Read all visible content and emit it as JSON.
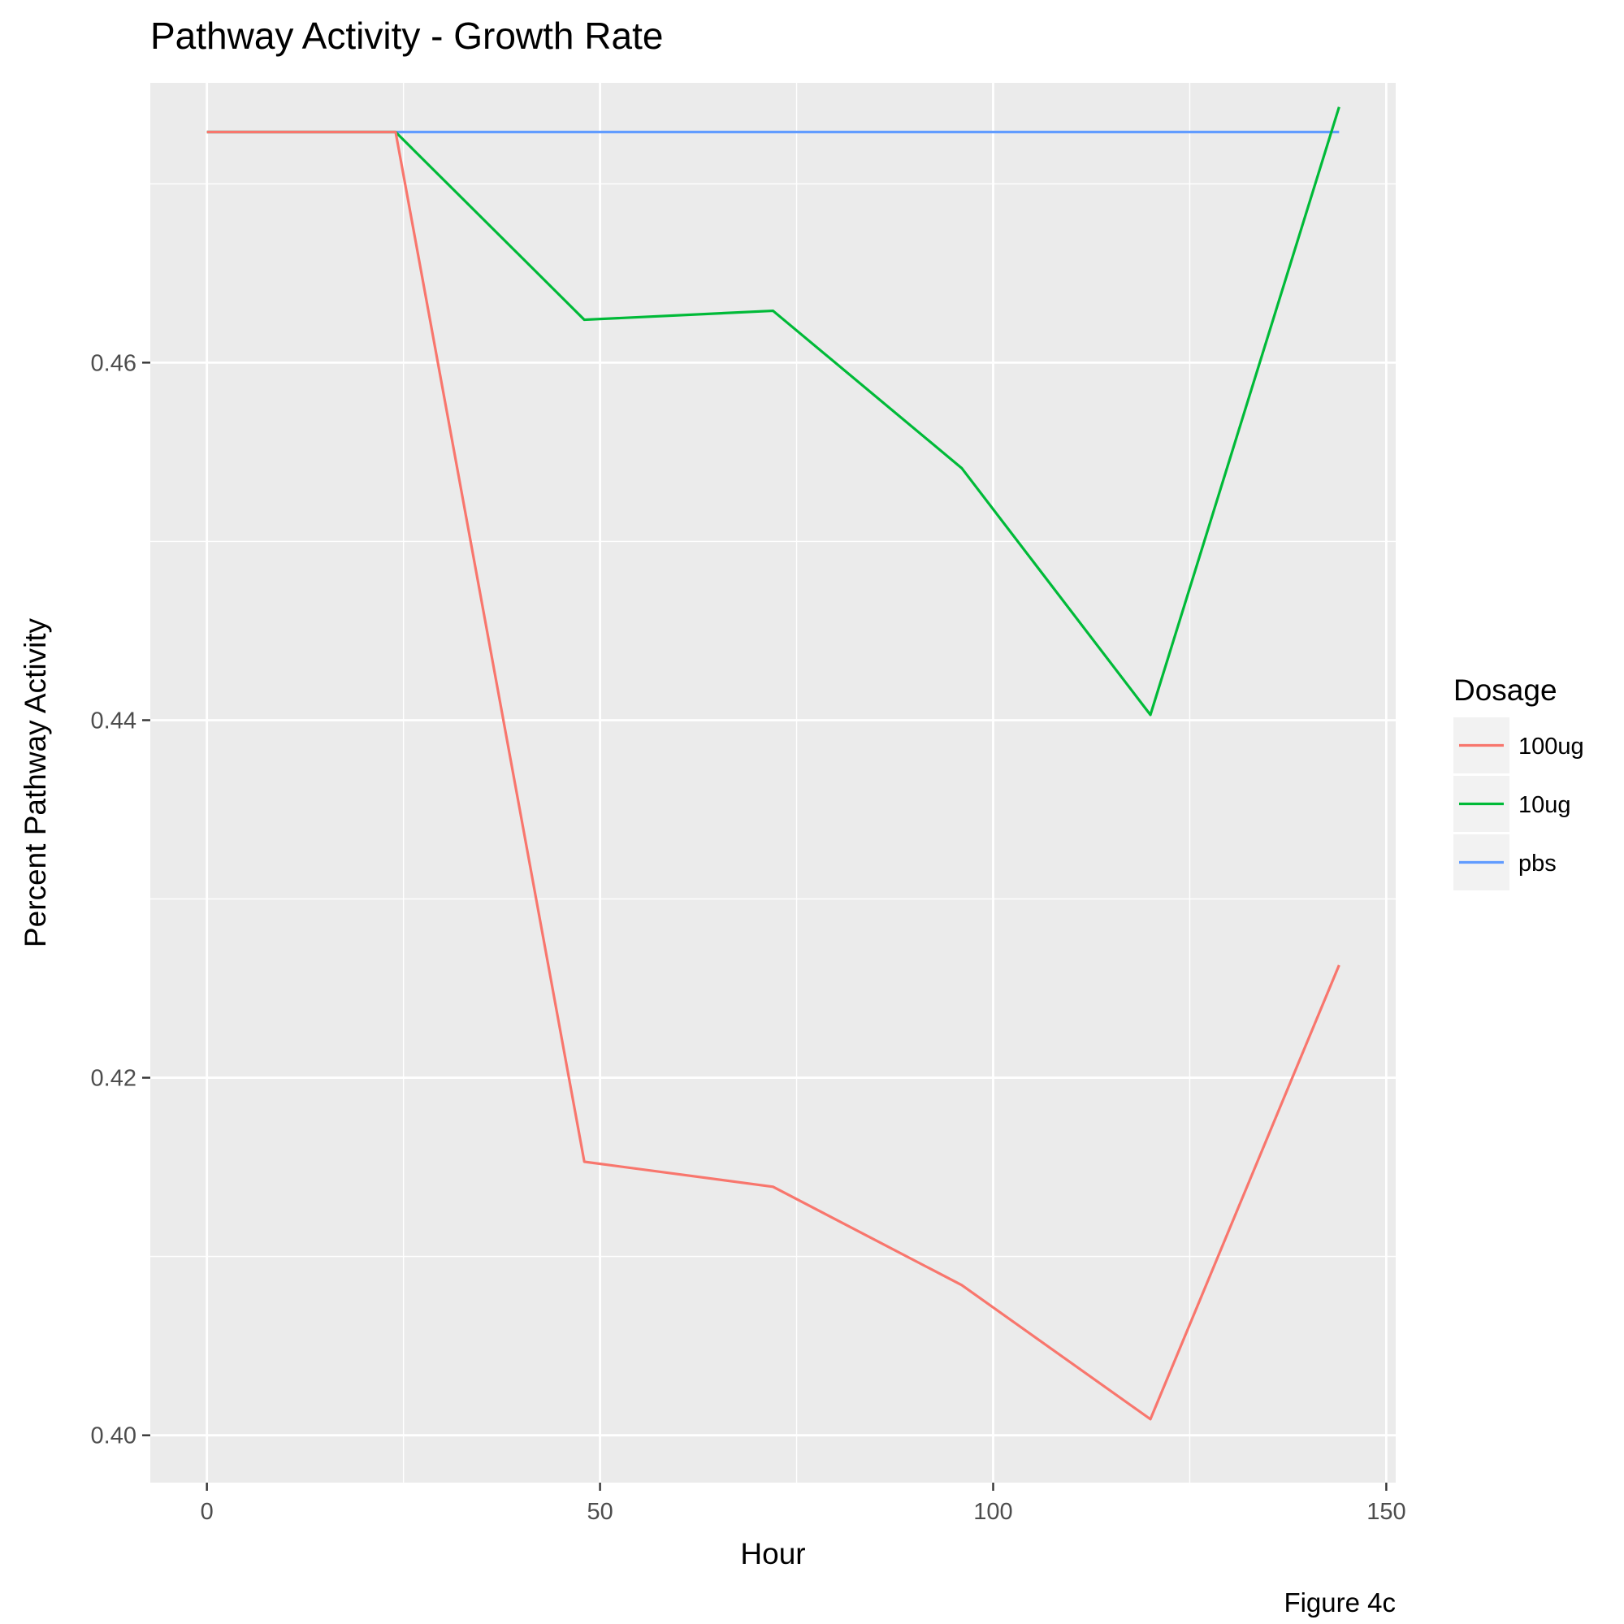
{
  "chart_data": {
    "type": "line",
    "title": "Pathway Activity - Growth Rate",
    "xlabel": "Hour",
    "ylabel": "Percent Pathway Activity",
    "caption": "Figure 4c",
    "xlim": [
      -7.2,
      151.2
    ],
    "ylim": [
      0.39735,
      0.47565
    ],
    "x_ticks": [
      0,
      50,
      100,
      150
    ],
    "x_tick_labels": [
      "0",
      "50",
      "100",
      "150"
    ],
    "y_ticks": [
      0.4,
      0.42,
      0.44,
      0.46
    ],
    "y_tick_labels": [
      "0.40",
      "0.42",
      "0.44",
      "0.46"
    ],
    "x_minor_ticks": [
      25,
      75,
      125
    ],
    "y_minor_ticks": [
      0.41,
      0.43,
      0.45,
      0.47
    ],
    "grid": true,
    "legend": {
      "title": "Dosage",
      "position": "right"
    },
    "x": [
      0,
      24,
      48,
      72,
      96,
      120,
      144
    ],
    "series": [
      {
        "name": "100ug",
        "color": "#F8766D",
        "values": [
          0.4729,
          0.4729,
          0.4153,
          0.4139,
          0.4084,
          0.4009,
          0.4263
        ]
      },
      {
        "name": "10ug",
        "color": "#00BA38",
        "values": [
          0.4729,
          0.4729,
          0.4624,
          0.4629,
          0.4541,
          0.4403,
          0.4743
        ]
      },
      {
        "name": "pbs",
        "color": "#619CFF",
        "values": [
          0.4729,
          0.4729,
          0.4729,
          0.4729,
          0.4729,
          0.4729,
          0.4729
        ]
      }
    ]
  }
}
